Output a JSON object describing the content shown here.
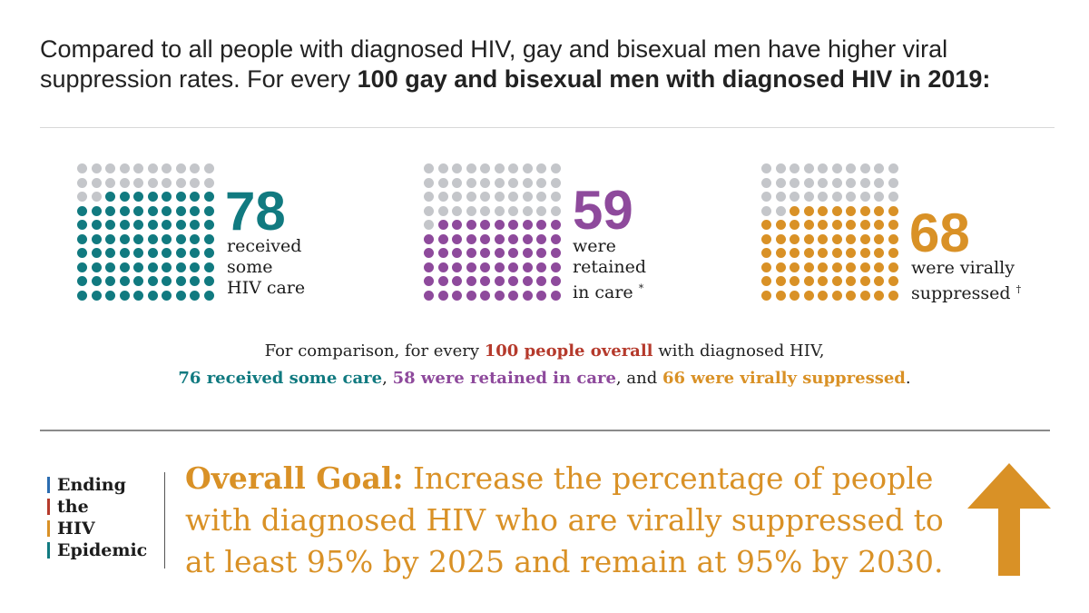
{
  "intro": {
    "text": "Compared to all people with diagnosed HIV, gay and bisexual men have higher viral suppression rates. For every ",
    "bold": "100 gay and bisexual men with diagnosed HIV in 2019:"
  },
  "colors": {
    "teal": "#117a80",
    "purple": "#8e4a9c",
    "gold": "#d99126",
    "red": "#b53a2c",
    "gray_dot": "#c4c6ca",
    "blue_bar": "#2b6cb0"
  },
  "stats": [
    {
      "value": "78",
      "filled": 78,
      "line1": "received",
      "line2": "some",
      "line3": "HIV care",
      "mark": ""
    },
    {
      "value": "59",
      "filled": 59,
      "line1": "were",
      "line2": "retained",
      "line3": "in care",
      "mark": "*"
    },
    {
      "value": "68",
      "filled": 68,
      "line1": "were virally",
      "line2": "suppressed",
      "line3": "",
      "mark": "†"
    }
  ],
  "comparison": {
    "line1_a": "For comparison, for every ",
    "line1_b": "100 people overall",
    "line1_c": " with diagnosed HIV,",
    "care": "76 received some care",
    "sep1": ", ",
    "retained": "58 were retained in care",
    "sep2": ", and ",
    "suppressed": "66 were virally suppressed",
    "end": "."
  },
  "logo": {
    "lines": [
      "Ending",
      "the",
      "HIV",
      "Epidemic"
    ],
    "bar_colors": [
      "#2b6cb0",
      "#b53a2c",
      "#d99126",
      "#117a80"
    ]
  },
  "goal": {
    "label": "Overall Goal:",
    "text": " Increase the percentage of people with diagnosed HIV who are virally suppressed to at least 95% by 2025 and remain at 95% by 2030."
  },
  "icons": {
    "arrow": "arrow-up-icon"
  }
}
